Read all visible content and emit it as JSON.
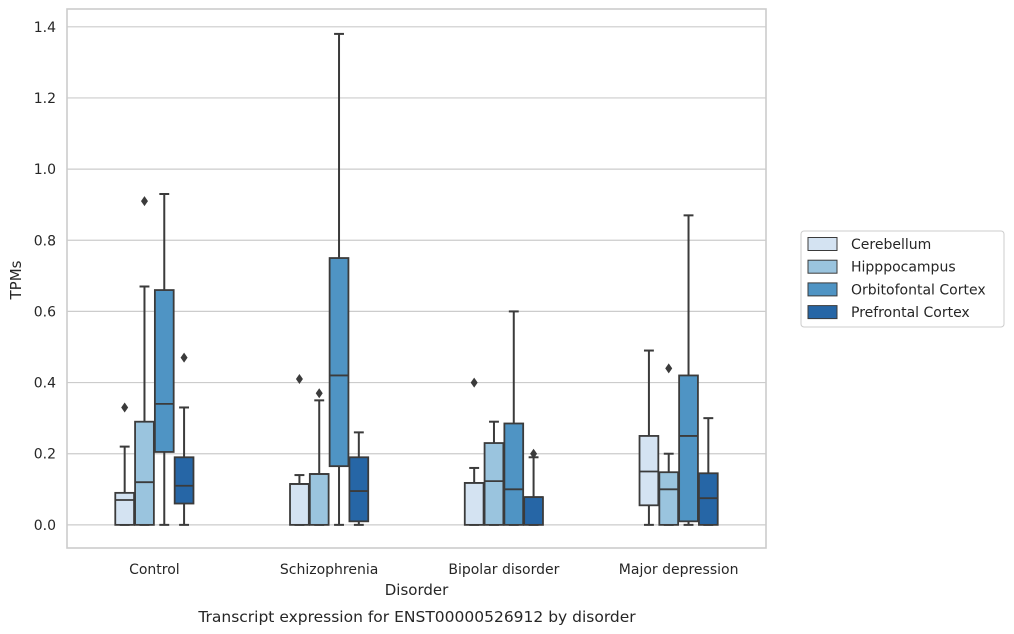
{
  "caption": "Transcript expression for ENST00000526912 by disorder",
  "chart_data": {
    "type": "box",
    "xlabel": "Disorder",
    "ylabel": "TPMs",
    "ylim": [
      -0.065,
      1.45
    ],
    "yticks": [
      "0.0",
      "0.2",
      "0.4",
      "0.6",
      "0.8",
      "1.0",
      "1.2",
      "1.4"
    ],
    "ytick_values": [
      0,
      0.2,
      0.4,
      0.6,
      0.8,
      1.0,
      1.2,
      1.4
    ],
    "grid": true,
    "legend_position": "right",
    "categories": [
      "Control",
      "Schizophrenia",
      "Bipolar disorder",
      "Major depression"
    ],
    "series": [
      {
        "name": "Cerebellum",
        "color": "#d4e3f2",
        "boxes": [
          {
            "whisker_low": 0,
            "q1": 0,
            "median": 0.07,
            "q3": 0.09,
            "whisker_high": 0.22,
            "outliers": [
              0.33
            ]
          },
          {
            "whisker_low": 0,
            "q1": 0,
            "median": 0.115,
            "q3": 0.115,
            "whisker_high": 0.14,
            "outliers": [
              0.41
            ]
          },
          {
            "whisker_low": 0,
            "q1": 0,
            "median": 0.118,
            "q3": 0.118,
            "whisker_high": 0.16,
            "outliers": [
              0.4
            ]
          },
          {
            "whisker_low": 0,
            "q1": 0.055,
            "median": 0.15,
            "q3": 0.25,
            "whisker_high": 0.49,
            "outliers": []
          }
        ]
      },
      {
        "name": "Hipppocampus",
        "color": "#9ac4de",
        "boxes": [
          {
            "whisker_low": 0,
            "q1": 0,
            "median": 0.12,
            "q3": 0.29,
            "whisker_high": 0.67,
            "outliers": [
              0.91
            ]
          },
          {
            "whisker_low": 0,
            "q1": 0,
            "median": 0.143,
            "q3": 0.143,
            "whisker_high": 0.35,
            "outliers": [
              0.37
            ]
          },
          {
            "whisker_low": 0,
            "q1": 0,
            "median": 0.123,
            "q3": 0.23,
            "whisker_high": 0.29,
            "outliers": []
          },
          {
            "whisker_low": 0,
            "q1": 0,
            "median": 0.1,
            "q3": 0.148,
            "whisker_high": 0.2,
            "outliers": [
              0.44
            ]
          }
        ]
      },
      {
        "name": "Orbitofontal Cortex",
        "color": "#4f94c4",
        "boxes": [
          {
            "whisker_low": 0,
            "q1": 0.205,
            "median": 0.34,
            "q3": 0.66,
            "whisker_high": 0.93,
            "outliers": []
          },
          {
            "whisker_low": 0,
            "q1": 0.165,
            "median": 0.42,
            "q3": 0.75,
            "whisker_high": 1.38,
            "outliers": []
          },
          {
            "whisker_low": 0,
            "q1": 0,
            "median": 0.1,
            "q3": 0.285,
            "whisker_high": 0.6,
            "outliers": []
          },
          {
            "whisker_low": 0,
            "q1": 0.01,
            "median": 0.25,
            "q3": 0.42,
            "whisker_high": 0.87,
            "outliers": []
          }
        ]
      },
      {
        "name": "Prefrontal Cortex",
        "color": "#2666a6",
        "boxes": [
          {
            "whisker_low": 0,
            "q1": 0.06,
            "median": 0.11,
            "q3": 0.19,
            "whisker_high": 0.33,
            "outliers": [
              0.47
            ]
          },
          {
            "whisker_low": 0,
            "q1": 0.01,
            "median": 0.095,
            "q3": 0.19,
            "whisker_high": 0.26,
            "outliers": []
          },
          {
            "whisker_low": 0,
            "q1": 0,
            "median": 0.078,
            "q3": 0.078,
            "whisker_high": 0.19,
            "outliers": [
              0.2
            ]
          },
          {
            "whisker_low": 0,
            "q1": 0,
            "median": 0.075,
            "q3": 0.145,
            "whisker_high": 0.3,
            "outliers": []
          }
        ]
      }
    ]
  }
}
